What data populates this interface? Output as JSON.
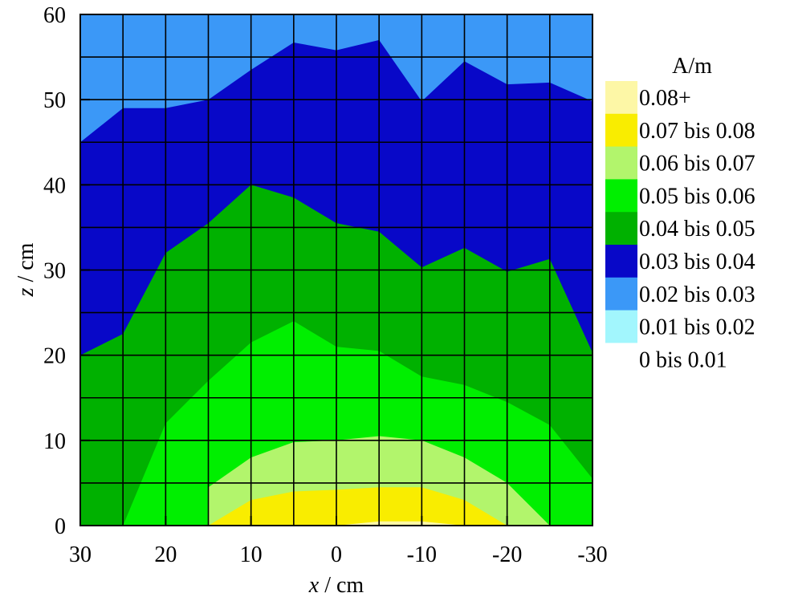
{
  "chart_data": {
    "type": "contour",
    "title": "",
    "xlabel": {
      "var": "x",
      "unit": "/ cm"
    },
    "ylabel": {
      "var": "z",
      "unit": "/ cm"
    },
    "xlim": [
      30,
      -30
    ],
    "ylim": [
      0,
      60
    ],
    "x_ticks": [
      "30",
      "20",
      "10",
      "0",
      "-10",
      "-20",
      "-30"
    ],
    "y_ticks": [
      "0",
      "10",
      "20",
      "30",
      "40",
      "50",
      "60"
    ],
    "grid": true,
    "grid_step": 5,
    "legend_title": "A/m",
    "legend_position": "right",
    "levels": [
      {
        "label": "0.08+",
        "color": "#fdf7a6"
      },
      {
        "label": "0.07 bis 0.08",
        "color": "#f9ed00"
      },
      {
        "label": "0.06 bis 0.07",
        "color": "#b2f56c"
      },
      {
        "label": "0.05 bis 0.06",
        "color": "#00ef00"
      },
      {
        "label": "0.04 bis 0.05",
        "color": "#00b100"
      },
      {
        "label": "0.03 bis 0.04",
        "color": "#0808c8"
      },
      {
        "label": "0.02 bis 0.03",
        "color": "#3b98f7"
      },
      {
        "label": "0.01 bis 0.02",
        "color": "#a2f6fd"
      },
      {
        "label": "0 bis 0.01",
        "color": "#ffffff"
      }
    ],
    "contour_boundaries": {
      "x": [
        30,
        25,
        20,
        15,
        10,
        5,
        0,
        -5,
        -10,
        -15,
        -20,
        -25,
        -30
      ],
      "upper_0.02_0.03": [
        45,
        49,
        49,
        50,
        53.5,
        56.7,
        55.8,
        57,
        49.8,
        54.5,
        51.8,
        52,
        49.8
      ],
      "upper_0.03_0.04": [
        20,
        22.5,
        32,
        35.5,
        40,
        38.5,
        35.5,
        34.5,
        30.3,
        32.6,
        29.8,
        31.3,
        20.3
      ],
      "upper_0.04_0.05": [
        0,
        0,
        12,
        17,
        21.5,
        24,
        21,
        20.5,
        17.5,
        16.5,
        14.5,
        11.8,
        5.5
      ],
      "upper_0.05_0.06": [
        null,
        null,
        null,
        4.5,
        8,
        9.8,
        10,
        10.5,
        10,
        8,
        5,
        0,
        null
      ],
      "upper_0.06_0.07": [
        null,
        null,
        null,
        0,
        3,
        4,
        4.2,
        4.5,
        4.5,
        3,
        0,
        null,
        null
      ],
      "upper_0.07_0.08": [
        null,
        null,
        null,
        null,
        null,
        null,
        0,
        0.5,
        0.5,
        0,
        null,
        null,
        null
      ]
    }
  }
}
